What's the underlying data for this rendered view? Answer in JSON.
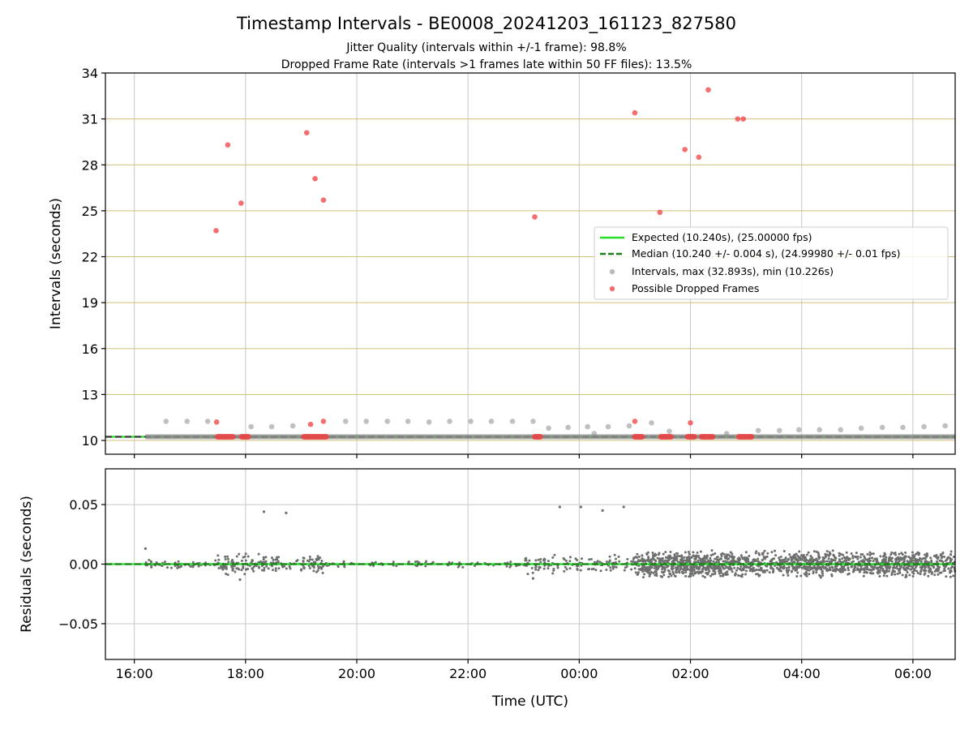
{
  "chart_data": [
    {
      "type": "scatter",
      "title": "Timestamp Intervals - BE0008_20241203_161123_827580",
      "subtitle_lines": [
        "Jitter Quality (intervals within +/-1 frame): 98.8%",
        "Dropped Frame Rate (intervals >1 frames late within 50 FF files): 13.5%"
      ],
      "ylabel": "Intervals (seconds)",
      "x_range_hours": [
        15.48,
        30.76
      ],
      "ylim": [
        9.1,
        34
      ],
      "yticks": [
        10,
        13,
        16,
        19,
        22,
        25,
        28,
        31,
        34
      ],
      "ytick_labels": [
        "10",
        "13",
        "16",
        "19",
        "22",
        "25",
        "28",
        "31",
        "34"
      ],
      "grid": true,
      "legend_placement": "center-right",
      "colors": {
        "expected": "#22dd22",
        "median": "#1a7f1a",
        "intervals": "#8c8c8c",
        "dropped": "#f04040",
        "ygrid": "#cfc07a",
        "xgrid": "#c8c8c8"
      },
      "legend": [
        "Expected (10.240s), (25.00000 fps)",
        "Median (10.240 +/- 0.004 s), (24.99980 +/- 0.01 fps)",
        "Intervals, max (32.893s), min (10.226s)",
        "Possible Dropped Frames"
      ],
      "expected_interval": 10.24,
      "median_interval": 10.24,
      "intervals_baseline": {
        "value": 10.24,
        "x_start": 16.2,
        "x_end": 30.76
      },
      "intervals_points": [
        [
          16.57,
          11.25
        ],
        [
          16.95,
          11.25
        ],
        [
          17.32,
          11.25
        ],
        [
          18.1,
          10.9
        ],
        [
          18.47,
          10.9
        ],
        [
          18.85,
          10.95
        ],
        [
          19.8,
          11.25
        ],
        [
          20.17,
          11.25
        ],
        [
          20.55,
          11.25
        ],
        [
          20.92,
          11.25
        ],
        [
          21.3,
          11.2
        ],
        [
          21.67,
          11.25
        ],
        [
          22.05,
          11.25
        ],
        [
          22.42,
          11.25
        ],
        [
          22.8,
          11.25
        ],
        [
          23.17,
          11.25
        ],
        [
          23.45,
          10.8
        ],
        [
          23.8,
          10.85
        ],
        [
          24.15,
          10.9
        ],
        [
          24.27,
          10.45
        ],
        [
          24.52,
          10.9
        ],
        [
          24.9,
          10.95
        ],
        [
          25.3,
          11.15
        ],
        [
          25.62,
          10.6
        ],
        [
          26.65,
          10.45
        ],
        [
          27.22,
          10.65
        ],
        [
          27.6,
          10.65
        ],
        [
          27.95,
          10.7
        ],
        [
          28.32,
          10.7
        ],
        [
          28.7,
          10.7
        ],
        [
          29.07,
          10.8
        ],
        [
          29.45,
          10.85
        ],
        [
          29.82,
          10.85
        ],
        [
          30.2,
          10.9
        ],
        [
          30.58,
          10.95
        ]
      ],
      "dropped_points": [
        [
          17.47,
          23.7
        ],
        [
          17.68,
          29.3
        ],
        [
          17.92,
          25.5
        ],
        [
          19.1,
          30.1
        ],
        [
          19.25,
          27.1
        ],
        [
          19.4,
          25.7
        ],
        [
          23.2,
          24.6
        ],
        [
          25.0,
          31.4
        ],
        [
          25.45,
          24.9
        ],
        [
          25.9,
          29.0
        ],
        [
          26.15,
          28.5
        ],
        [
          26.32,
          32.9
        ],
        [
          26.85,
          31.0
        ],
        [
          26.95,
          31.0
        ],
        [
          17.48,
          11.2
        ],
        [
          19.17,
          11.05
        ],
        [
          19.4,
          11.25
        ],
        [
          25.0,
          11.25
        ],
        [
          26.0,
          11.15
        ]
      ],
      "dropped_clusters_at_baseline": [
        [
          17.45,
          17.82
        ],
        [
          17.88,
          18.1
        ],
        [
          19.0,
          19.5
        ],
        [
          23.15,
          23.35
        ],
        [
          24.95,
          25.18
        ],
        [
          25.42,
          25.7
        ],
        [
          25.9,
          26.12
        ],
        [
          26.15,
          26.45
        ],
        [
          26.82,
          27.15
        ]
      ]
    },
    {
      "type": "scatter",
      "xlabel": "Time (UTC)",
      "ylabel": "Residuals (seconds)",
      "x_range_hours": [
        15.48,
        30.76
      ],
      "ylim": [
        -0.08,
        0.08
      ],
      "yticks": [
        -0.05,
        0,
        0.05
      ],
      "ytick_labels": [
        "−0.05",
        "0.00",
        "0.05"
      ],
      "xtick_hours": [
        16,
        18,
        20,
        22,
        24,
        26,
        28,
        30
      ],
      "xtick_labels": [
        "16:00",
        "18:00",
        "20:00",
        "22:00",
        "00:00",
        "02:00",
        "04:00",
        "06:00"
      ],
      "grid": true,
      "residual_outliers": [
        [
          16.2,
          0.013
        ],
        [
          18.33,
          0.044
        ],
        [
          18.73,
          0.043
        ],
        [
          23.65,
          0.048
        ],
        [
          24.03,
          0.048
        ],
        [
          24.42,
          0.045
        ],
        [
          24.8,
          0.048
        ],
        [
          17.9,
          -0.013
        ],
        [
          23.17,
          -0.012
        ]
      ],
      "residual_segments": [
        {
          "x_start": 16.2,
          "x_end": 17.5,
          "spread": 0.004,
          "density": 0.6
        },
        {
          "x_start": 17.5,
          "x_end": 18.6,
          "spread": 0.01,
          "density": 1.6
        },
        {
          "x_start": 18.6,
          "x_end": 19.0,
          "spread": 0.006,
          "density": 0.5
        },
        {
          "x_start": 19.0,
          "x_end": 19.4,
          "spread": 0.01,
          "density": 1.6
        },
        {
          "x_start": 19.4,
          "x_end": 23.0,
          "spread": 0.003,
          "density": 0.3
        },
        {
          "x_start": 23.0,
          "x_end": 25.0,
          "spread": 0.009,
          "density": 0.9
        },
        {
          "x_start": 25.0,
          "x_end": 30.76,
          "spread": 0.012,
          "density": 4.0
        }
      ]
    }
  ]
}
